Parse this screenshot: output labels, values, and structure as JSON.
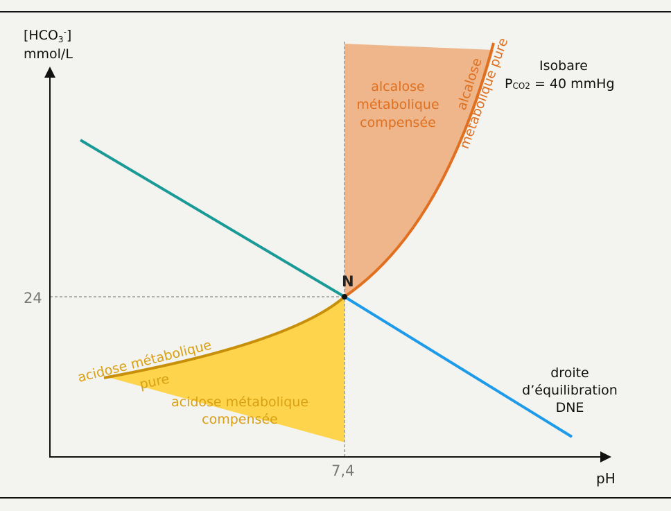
{
  "axes": {
    "y_label_line1": "[HCO",
    "y_label_sub": "3",
    "y_label_sup": "-",
    "y_label_close": "]",
    "y_label_line2": "mmol/L",
    "x_label": "pH",
    "y_tick": "24",
    "x_tick": "7,4"
  },
  "point": {
    "label": "N"
  },
  "isobare": {
    "line1": "Isobare",
    "p": "P",
    "sub": "CO2",
    "rest": " = 40 mmHg"
  },
  "dne": {
    "line1": "droite",
    "line2": "d’équilibration",
    "line3": "DNE"
  },
  "regions": {
    "alk_comp_1": "alcalose",
    "alk_comp_2": "métabolique",
    "alk_comp_3": "compensée",
    "alk_pure_1": "alcalose",
    "alk_pure_2": "métabolique pure",
    "acid_pure_1": "acidose métabolique",
    "acid_pure_2": "pure",
    "acid_comp_1": "acidose métabolique",
    "acid_comp_2": "compensée"
  },
  "colors": {
    "background": "#f3f3ef",
    "teal_line": "#1a9a96",
    "blue_line": "#1e9be8",
    "alkalosis_curve": "#e07020",
    "alkalosis_fill": "#eeb68a",
    "acidosis_curve": "#c8900a",
    "acidosis_fill": "#fdd44c",
    "text_orange": "#e07020",
    "text_gold": "#d9a012",
    "frame": "#111111"
  }
}
